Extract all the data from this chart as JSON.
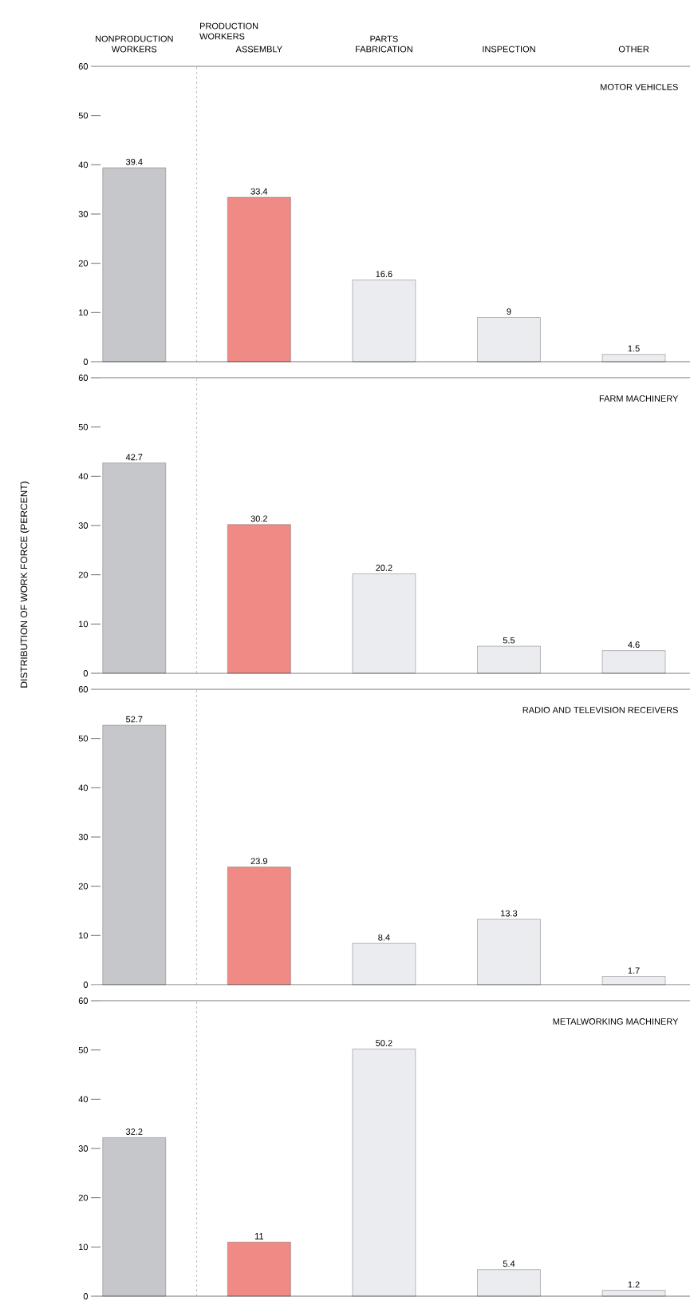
{
  "chart_data": [
    {
      "type": "bar",
      "title": "MOTOR VEHICLES",
      "categories": [
        "NONPRODUCTION WORKERS",
        "ASSEMBLY",
        "PARTS FABRICATION",
        "INSPECTION",
        "OTHER"
      ],
      "values": [
        39.4,
        33.4,
        16.6,
        9,
        1.5
      ],
      "colors": [
        "#c6c7cb",
        "#f08a85",
        "#ebecf0",
        "#ebecf0",
        "#ebecf0"
      ],
      "ylim": [
        0,
        60
      ],
      "yticks": [
        0,
        10,
        20,
        30,
        40,
        50,
        60
      ],
      "data_labels": true,
      "annotations": [
        "PRODUCTION WORKERS"
      ]
    },
    {
      "type": "bar",
      "title": "FARM MACHINERY",
      "ylabel": "DISTRIBUTION OF WORK FORCE (PERCENT)",
      "categories": [
        null,
        null,
        null,
        null,
        null
      ],
      "values": [
        42.7,
        30.2,
        20.2,
        5.5,
        4.6
      ],
      "colors": [
        "#c6c7cb",
        "#f08a85",
        "#ebecf0",
        "#ebecf0",
        "#ebecf0"
      ],
      "ylim": [
        0,
        60
      ],
      "yticks": [
        0,
        10,
        20,
        30,
        40,
        50,
        60
      ],
      "data_labels": true,
      "tick_labels": "y"
    },
    {
      "type": "bar",
      "title": "RADIO AND TELEVISION RECEIVERS",
      "categories": [
        null,
        null,
        null,
        null,
        null
      ],
      "values": [
        52.7,
        23.9,
        8.4,
        13.3,
        1.7
      ],
      "colors": [
        "#c6c7cb",
        "#f08a85",
        "#ebecf0",
        "#ebecf0",
        "#ebecf0"
      ],
      "ylim": [
        0,
        60
      ],
      "yticks": [
        0,
        10,
        20,
        30,
        40,
        50,
        60
      ],
      "data_labels": true,
      "tick_labels": "y"
    },
    {
      "type": "bar",
      "title": "METALWORKING MACHINERY",
      "categories": [
        null,
        null,
        null,
        null,
        null
      ],
      "values": [
        32.2,
        11,
        50.2,
        5.4,
        1.2
      ],
      "colors": [
        "#c6c7cb",
        "#f08a85",
        "#ebecf0",
        "#ebecf0",
        "#ebecf0"
      ],
      "ylim": [
        0,
        60
      ],
      "yticks": [
        0,
        10,
        20,
        30,
        40,
        50,
        60
      ],
      "data_labels": true,
      "tick_labels": "y"
    }
  ]
}
